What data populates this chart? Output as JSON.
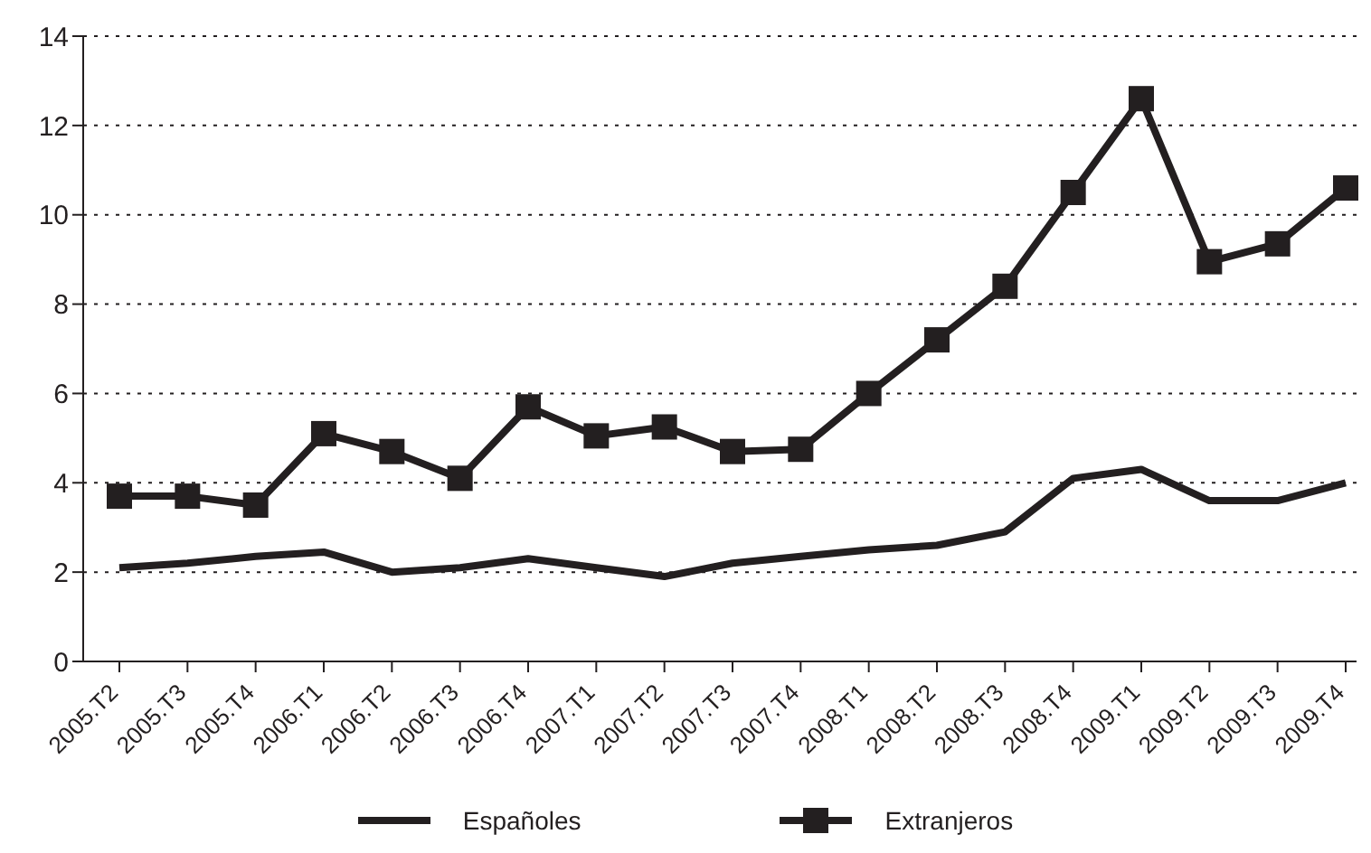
{
  "chart_data": {
    "type": "line",
    "categories": [
      "2005.T2",
      "2005.T3",
      "2005.T4",
      "2006.T1",
      "2006.T2",
      "2006.T3",
      "2006.T4",
      "2007.T1",
      "2007.T2",
      "2007.T3",
      "2007.T4",
      "2008.T1",
      "2008.T2",
      "2008.T3",
      "2008.T4",
      "2009.T1",
      "2009.T2",
      "2009.T3",
      "2009.T4"
    ],
    "series": [
      {
        "name": "Españoles",
        "color": "#231f20",
        "marker": "none",
        "values": [
          2.1,
          2.2,
          2.35,
          2.45,
          2.0,
          2.1,
          2.3,
          2.1,
          1.9,
          2.2,
          2.35,
          2.5,
          2.6,
          2.9,
          4.1,
          4.3,
          3.6,
          3.6,
          4.0
        ]
      },
      {
        "name": "Extranjeros",
        "color": "#231f20",
        "marker": "square",
        "values": [
          3.7,
          3.7,
          3.5,
          5.1,
          4.7,
          4.1,
          5.7,
          5.05,
          5.25,
          4.7,
          4.75,
          6.0,
          7.2,
          8.4,
          10.5,
          12.6,
          8.95,
          9.35,
          10.6
        ]
      }
    ],
    "ylim": [
      0,
      14
    ],
    "yticks": [
      0,
      2,
      4,
      6,
      8,
      10,
      12,
      14
    ],
    "grid": "y",
    "legend": "bottom",
    "line_style": "solid"
  }
}
